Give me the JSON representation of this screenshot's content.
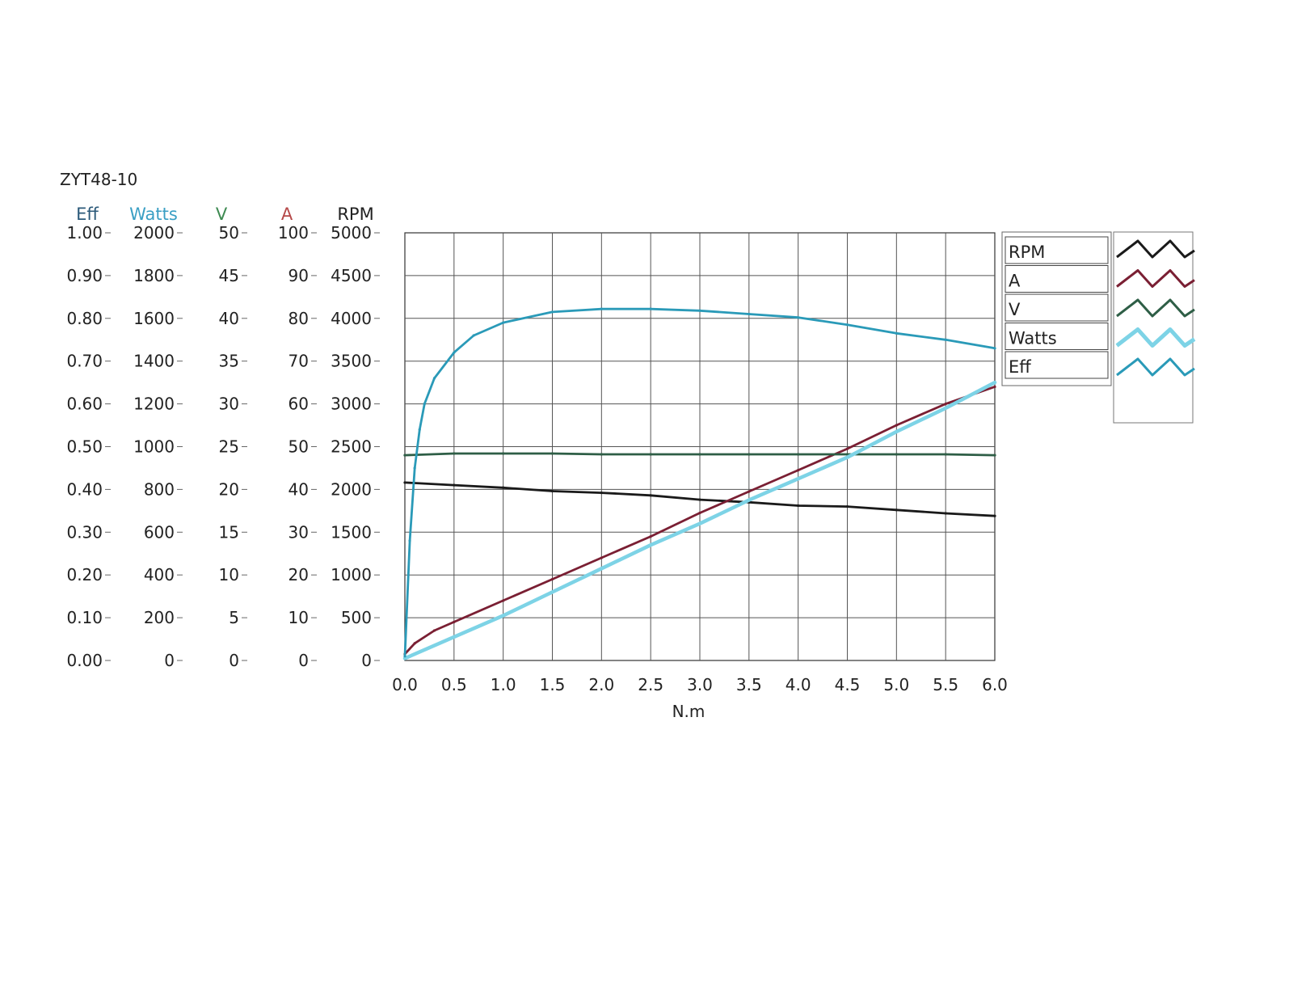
{
  "chart_data": {
    "type": "line",
    "title": "ZYT48-10",
    "xlabel": "N.m",
    "xlim": [
      0,
      6
    ],
    "x_ticks": [
      "0.0",
      "0.5",
      "1.0",
      "1.5",
      "2.0",
      "2.5",
      "3.0",
      "3.5",
      "4.0",
      "4.5",
      "5.0",
      "5.5",
      "6.0"
    ],
    "grid": true,
    "legend_position": "top-right",
    "axes": [
      {
        "label": "Eff",
        "color": "#2c5a7a",
        "ylim": [
          0,
          1
        ],
        "ticks": [
          "0.00",
          "0.10",
          "0.20",
          "0.30",
          "0.40",
          "0.50",
          "0.60",
          "0.70",
          "0.80",
          "0.90",
          "1.00"
        ]
      },
      {
        "label": "Watts",
        "color": "#3a9fc4",
        "ylim": [
          0,
          2000
        ],
        "ticks": [
          "0",
          "200",
          "400",
          "600",
          "800",
          "1000",
          "1200",
          "1400",
          "1600",
          "1800",
          "2000"
        ]
      },
      {
        "label": "V",
        "color": "#3e8a52",
        "ylim": [
          0,
          50
        ],
        "ticks": [
          "0",
          "5",
          "10",
          "15",
          "20",
          "25",
          "30",
          "35",
          "40",
          "45",
          "50"
        ]
      },
      {
        "label": "A",
        "color": "#b54848",
        "ylim": [
          0,
          100
        ],
        "ticks": [
          "0",
          "10",
          "20",
          "30",
          "40",
          "50",
          "60",
          "70",
          "80",
          "90",
          "100"
        ]
      },
      {
        "label": "RPM",
        "color": "#222222",
        "ylim": [
          0,
          5000
        ],
        "ticks": [
          "0",
          "500",
          "1000",
          "1500",
          "2000",
          "2500",
          "3000",
          "3500",
          "4000",
          "4500",
          "5000"
        ]
      }
    ],
    "legend": [
      "RPM",
      "A",
      "V",
      "Watts",
      "Eff"
    ],
    "series": [
      {
        "name": "RPM",
        "axis": 4,
        "color": "#1a1a1a",
        "x": [
          0.0,
          0.5,
          1.0,
          1.5,
          2.0,
          2.5,
          3.0,
          3.5,
          4.0,
          4.5,
          5.0,
          5.5,
          6.0
        ],
        "y": [
          2080,
          2050,
          2020,
          1980,
          1960,
          1930,
          1880,
          1850,
          1810,
          1800,
          1760,
          1720,
          1690
        ]
      },
      {
        "name": "A",
        "axis": 3,
        "color": "#7a1f33",
        "x": [
          0.0,
          0.1,
          0.3,
          0.5,
          1.0,
          1.5,
          2.0,
          2.5,
          3.0,
          3.5,
          4.0,
          4.5,
          5.0,
          5.5,
          6.0
        ],
        "y": [
          1.5,
          4,
          7,
          9,
          14,
          19,
          24,
          29,
          34.5,
          39.5,
          44.5,
          49.5,
          55,
          60,
          64
        ]
      },
      {
        "name": "V",
        "axis": 2,
        "color": "#2e5e46",
        "x": [
          0.0,
          0.5,
          1.0,
          1.5,
          2.0,
          2.5,
          3.0,
          3.5,
          4.0,
          4.5,
          5.0,
          5.5,
          6.0
        ],
        "y": [
          24.0,
          24.2,
          24.2,
          24.2,
          24.1,
          24.1,
          24.1,
          24.1,
          24.1,
          24.1,
          24.1,
          24.1,
          24.0
        ]
      },
      {
        "name": "Watts",
        "axis": 1,
        "color": "#7dd3e6",
        "x": [
          0.0,
          0.5,
          1.0,
          1.5,
          2.0,
          2.5,
          3.0,
          3.5,
          4.0,
          4.5,
          5.0,
          5.5,
          6.0
        ],
        "y": [
          10,
          110,
          210,
          320,
          430,
          540,
          640,
          750,
          850,
          950,
          1070,
          1180,
          1300
        ]
      },
      {
        "name": "Eff",
        "axis": 0,
        "color": "#2a9ab8",
        "x": [
          0.0,
          0.05,
          0.1,
          0.15,
          0.2,
          0.3,
          0.5,
          0.7,
          1.0,
          1.5,
          2.0,
          2.5,
          3.0,
          3.5,
          4.0,
          4.5,
          5.0,
          5.5,
          6.0
        ],
        "y": [
          0.01,
          0.28,
          0.45,
          0.54,
          0.6,
          0.66,
          0.72,
          0.76,
          0.79,
          0.815,
          0.822,
          0.822,
          0.818,
          0.81,
          0.802,
          0.785,
          0.765,
          0.75,
          0.73
        ]
      }
    ]
  }
}
